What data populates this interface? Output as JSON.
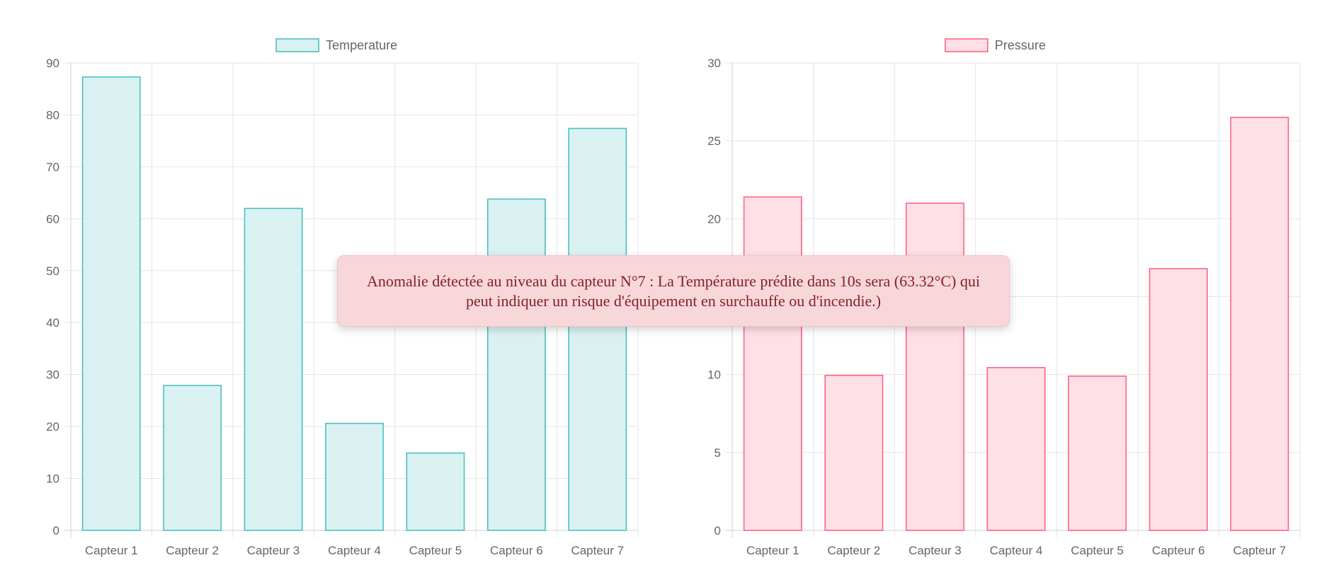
{
  "chart_data": [
    {
      "type": "bar",
      "categories": [
        "Capteur 1",
        "Capteur 2",
        "Capteur 3",
        "Capteur 4",
        "Capteur 5",
        "Capteur 6",
        "Capteur 7"
      ],
      "series": [
        {
          "name": "Temperature",
          "values": [
            87.3,
            27.9,
            62.0,
            20.6,
            14.9,
            63.8,
            77.4
          ]
        }
      ],
      "ylim": [
        0,
        90
      ],
      "yticks": [
        0,
        10,
        20,
        30,
        40,
        50,
        60,
        70,
        80,
        90
      ],
      "legend": "top",
      "grid": true,
      "colors": {
        "fill": "#d9f1f1",
        "stroke": "#4bc0c0"
      }
    },
    {
      "type": "bar",
      "categories": [
        "Capteur 1",
        "Capteur 2",
        "Capteur 3",
        "Capteur 4",
        "Capteur 5",
        "Capteur 6",
        "Capteur 7"
      ],
      "series": [
        {
          "name": "Pressure",
          "values": [
            21.4,
            9.95,
            21.0,
            10.45,
            9.9,
            16.8,
            26.5
          ]
        }
      ],
      "ylim": [
        0,
        30
      ],
      "yticks": [
        0,
        5,
        10,
        15,
        20,
        25,
        30
      ],
      "legend": "top",
      "grid": true,
      "colors": {
        "fill": "#ffe0e6",
        "stroke": "#ff6384"
      }
    }
  ],
  "alert": {
    "message": "Anomalie détectée au niveau du capteur N°7 : La Température prédite dans 10s sera (63.32°C) qui peut indiquer un risque d'équipement en surchauffe ou d'incendie.)"
  },
  "colors": {
    "grid": "#e5e5e5",
    "axis_text": "#666666",
    "alert_bg": "#f8d7da",
    "alert_text": "#842029"
  }
}
